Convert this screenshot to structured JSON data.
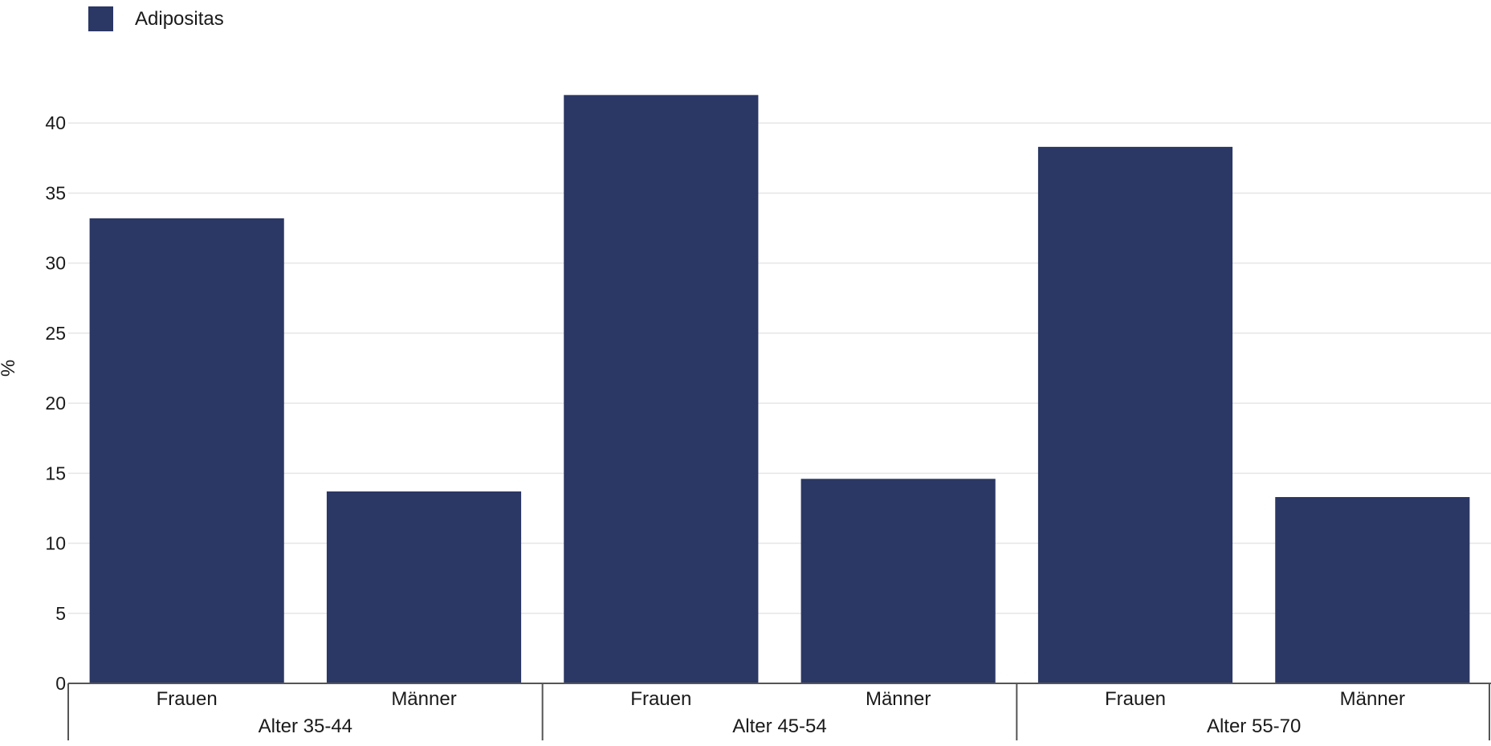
{
  "chart_data": {
    "type": "bar",
    "ylabel": "%",
    "ylim": [
      0,
      45
    ],
    "yticks": [
      0,
      5,
      10,
      15,
      20,
      25,
      30,
      35,
      40
    ],
    "grid": true,
    "legend_position": "top-left",
    "groups": [
      {
        "label": "Alter 35-44",
        "categories": [
          "Frauen",
          "Männer"
        ]
      },
      {
        "label": "Alter 45-54",
        "categories": [
          "Frauen",
          "Männer"
        ]
      },
      {
        "label": "Alter 55-70",
        "categories": [
          "Frauen",
          "Männer"
        ]
      }
    ],
    "series": [
      {
        "name": "Adipositas",
        "color": "#2b3764",
        "values": [
          33.2,
          13.7,
          42.0,
          14.6,
          38.3,
          13.3
        ]
      }
    ]
  }
}
